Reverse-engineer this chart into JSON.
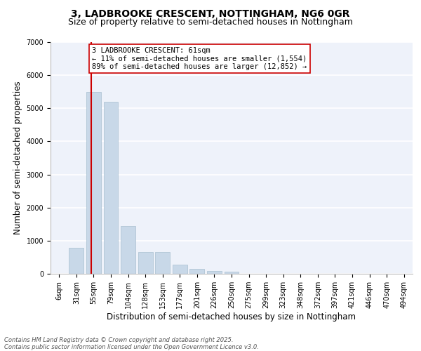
{
  "title_line1": "3, LADBROOKE CRESCENT, NOTTINGHAM, NG6 0GR",
  "title_line2": "Size of property relative to semi-detached houses in Nottingham",
  "xlabel": "Distribution of semi-detached houses by size in Nottingham",
  "ylabel": "Number of semi-detached properties",
  "categories": [
    "6sqm",
    "31sqm",
    "55sqm",
    "79sqm",
    "104sqm",
    "128sqm",
    "153sqm",
    "177sqm",
    "201sqm",
    "226sqm",
    "250sqm",
    "275sqm",
    "299sqm",
    "323sqm",
    "348sqm",
    "372sqm",
    "397sqm",
    "421sqm",
    "446sqm",
    "470sqm",
    "494sqm"
  ],
  "values": [
    10,
    790,
    5500,
    5200,
    1450,
    650,
    650,
    280,
    150,
    90,
    70,
    0,
    0,
    0,
    0,
    0,
    0,
    0,
    0,
    0,
    0
  ],
  "bar_color": "#c8d8e8",
  "bar_edge_color": "#a8bfd0",
  "highlight_line_color": "#cc0000",
  "annotation_text": "3 LADBROOKE CRESCENT: 61sqm\n← 11% of semi-detached houses are smaller (1,554)\n89% of semi-detached houses are larger (12,852) →",
  "ylim": [
    0,
    7000
  ],
  "yticks": [
    0,
    1000,
    2000,
    3000,
    4000,
    5000,
    6000,
    7000
  ],
  "background_color": "#eef2fa",
  "grid_color": "#ffffff",
  "footer_text": "Contains HM Land Registry data © Crown copyright and database right 2025.\nContains public sector information licensed under the Open Government Licence v3.0.",
  "title_fontsize": 10,
  "subtitle_fontsize": 9,
  "axis_label_fontsize": 8.5,
  "tick_fontsize": 7,
  "annotation_fontsize": 7.5,
  "footer_fontsize": 6
}
